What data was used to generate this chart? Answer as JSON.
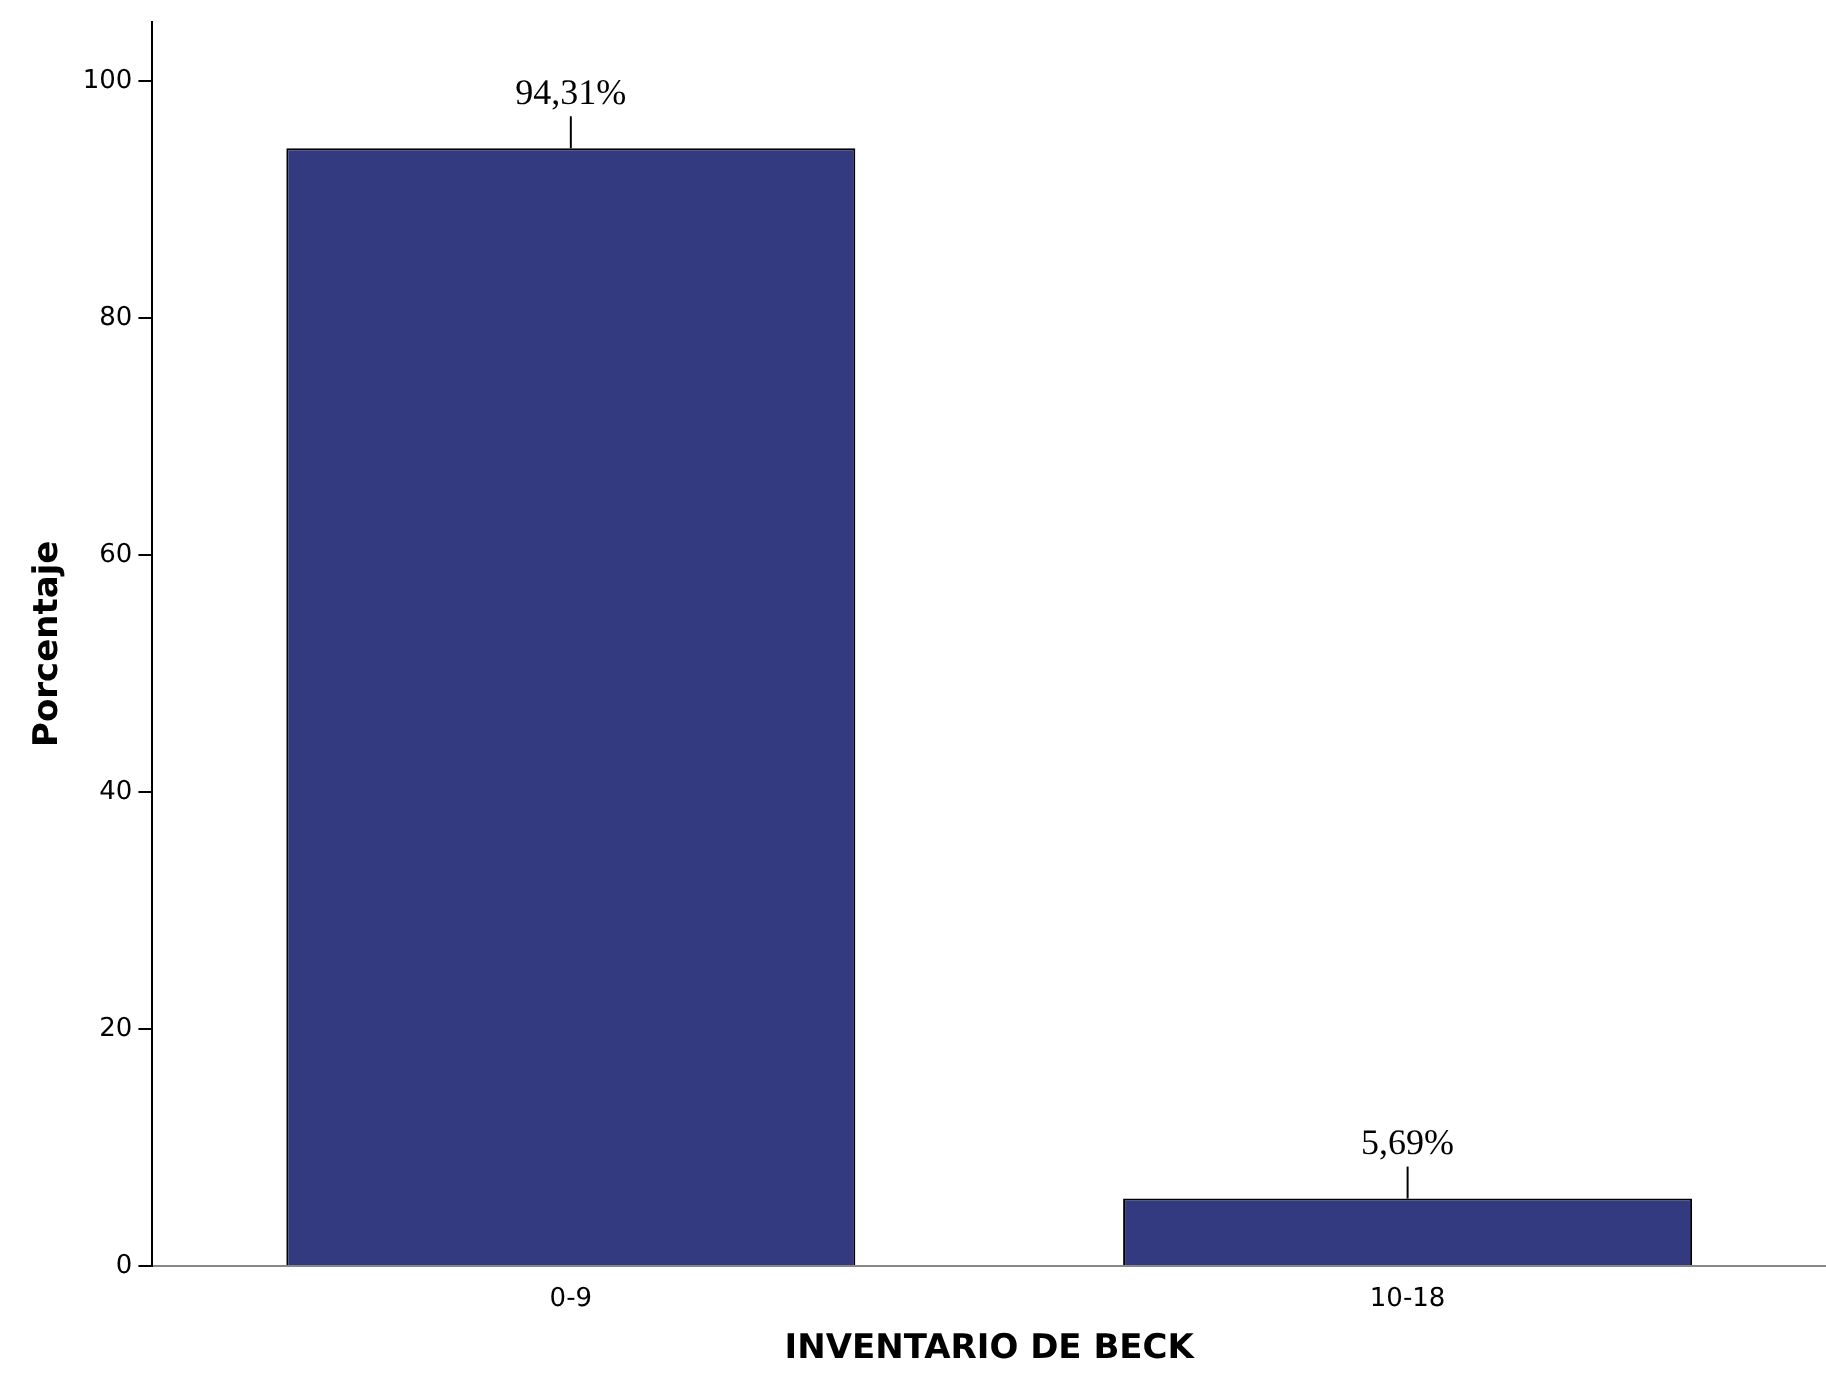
{
  "chart_data": {
    "type": "bar",
    "xlabel": "INVENTARIO DE BECK",
    "ylabel": "Porcentaje",
    "categories": [
      "0-9",
      "10-18"
    ],
    "values": [
      94.31,
      5.69
    ],
    "color": "#343a80",
    "value_labels": [
      "94,31%",
      "5,69%"
    ],
    "ylim": [
      0,
      105
    ],
    "yticks": [
      0,
      20,
      40,
      60,
      80,
      100
    ],
    "grid": false,
    "legend": false
  }
}
